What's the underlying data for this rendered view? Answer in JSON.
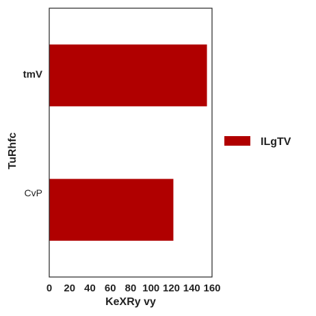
{
  "chart_data": {
    "type": "bar",
    "orientation": "horizontal",
    "categories": [
      "tmV",
      "CvP"
    ],
    "series": [
      {
        "name": "ILgTV",
        "values": [
          155,
          122
        ]
      }
    ],
    "xlabel": "KeXRy vy",
    "ylabel": "TuRhfc",
    "xlim": [
      0,
      160
    ],
    "xticks": [
      "0",
      "20",
      "40",
      "60",
      "80",
      "100",
      "120",
      "140",
      "160"
    ],
    "grid": false,
    "legend_position": "right",
    "colors": {
      "bar": "#b00000",
      "frame": "#222222"
    }
  }
}
